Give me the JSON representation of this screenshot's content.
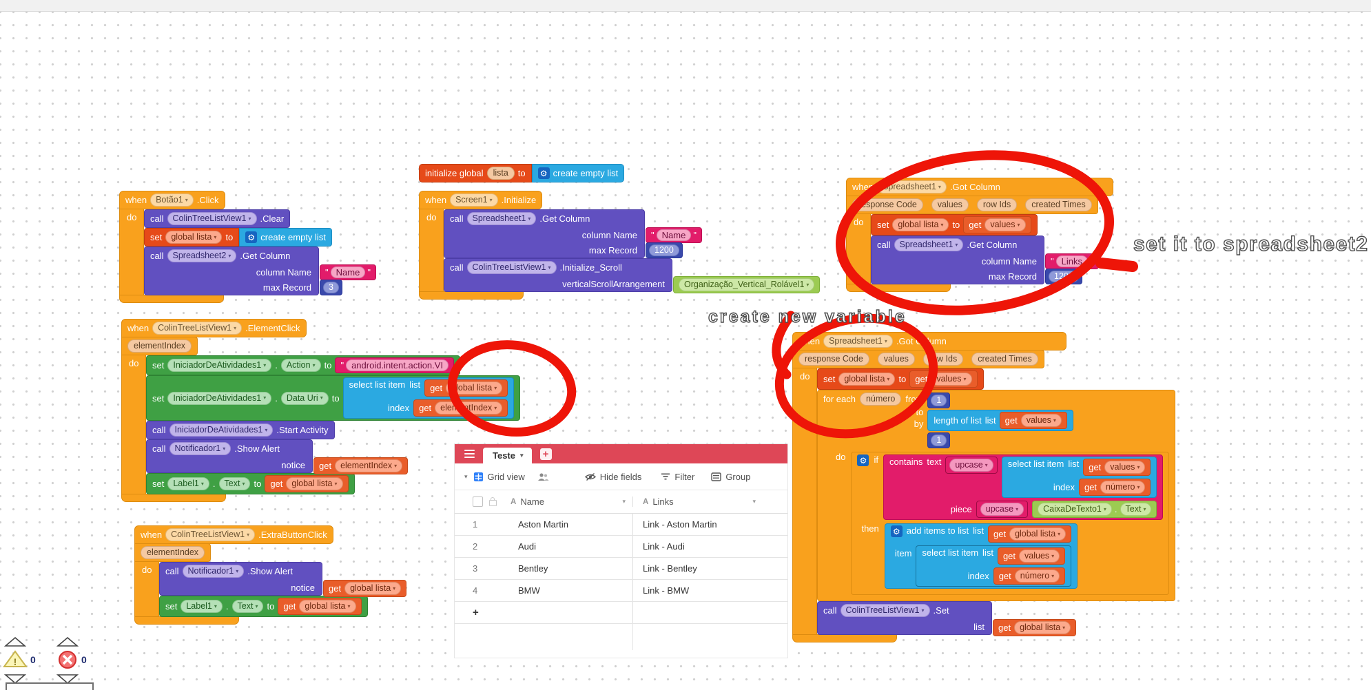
{
  "common": {
    "when": "when",
    "do": "do",
    "call": "call",
    "set": "set",
    "to": "to",
    "get": "get",
    "then": "then",
    "if": "if",
    "list": "list",
    "index": "index",
    "item": "item",
    "dot": "."
  },
  "annotations": {
    "set_it": "set it to spreadsheet2",
    "create_var": "create new variable"
  },
  "status": {
    "warnings": "0",
    "errors": "0"
  },
  "blocks": {
    "init_global": {
      "label": "initialize global",
      "name": "lista",
      "value": "create empty list"
    },
    "botao": {
      "component": "Botão1",
      "event": ".Click",
      "clear": {
        "component": "ColinTreeListView1",
        "method": ".Clear"
      },
      "set_lista": {
        "var": "global lista",
        "value": "create empty list"
      },
      "get_col": {
        "component": "Spreadsheet2",
        "method": ".Get Column",
        "arg1": "column Name",
        "val1": "Name",
        "arg2": "max Record",
        "val2": "3"
      }
    },
    "screen": {
      "component": "Screen1",
      "event": ".Initialize",
      "get_col": {
        "component": "Spreadsheet1",
        "method": ".Get Column",
        "arg1": "column Name",
        "val1": "Name",
        "arg2": "max Record",
        "val2": "1200"
      },
      "init_scroll": {
        "component": "ColinTreeListView1",
        "method": ".Initialize_Scroll",
        "arg1": "verticalScrollArrangement",
        "val1": "Organização_Vertical_Rolável1"
      }
    },
    "gotcol1": {
      "component": "Spreadsheet1",
      "event": ".Got Column",
      "p1": "response Code",
      "p2": "values",
      "p3": "row Ids",
      "p4": "created Times",
      "set_lista": {
        "var": "global lista",
        "get": "values"
      },
      "get_col": {
        "component": "Spreadsheet1",
        "method": ".Get Column",
        "arg1": "column Name",
        "val1": "Links",
        "arg2": "max Record",
        "val2": "1200"
      }
    },
    "elemclick": {
      "component": "ColinTreeListView1",
      "event": ".ElementClick",
      "param": "elementIndex",
      "set_action": {
        "component": "IniciadorDeAtividades1",
        "prop": "Action",
        "text": "android.intent.action.VI"
      },
      "set_datauri": {
        "component": "IniciadorDeAtividades1",
        "prop": "Data Uri",
        "select": "select list item",
        "list_get": "global lista",
        "index_get": "elementIndex"
      },
      "start": {
        "component": "IniciadorDeAtividades1",
        "method": ".Start Activity"
      },
      "alert": {
        "component": "Notificador1",
        "method": ".Show Alert",
        "arg": "notice",
        "get": "elementIndex"
      },
      "set_label": {
        "component": "Label1",
        "prop": "Text",
        "get": "global lista"
      }
    },
    "gotcol2": {
      "component": "Spreadsheet1",
      "event": ".Got Column",
      "p1": "response Code",
      "p2": "values",
      "p3": "row Ids",
      "p4": "created Times",
      "set_lista": {
        "var": "global lista",
        "get": "values"
      },
      "foreach": {
        "label": "for each",
        "varname": "número",
        "from": "from",
        "from_val": "1",
        "by": "by",
        "by_val": "1",
        "length": {
          "label": "length of list",
          "get": "values"
        },
        "iff": {
          "contains": "contains",
          "text": "text",
          "upcase1": "upcase",
          "sel_label": "select list item",
          "sel_list_get": "values",
          "sel_index_get": "número",
          "piece": "piece",
          "upcase2": "upcase",
          "comp": "CaixaDeTexto1",
          "prop": "Text"
        },
        "add": {
          "label": "add items to list",
          "list_get": "global lista",
          "sel_label": "select list item",
          "sel_list_get": "values",
          "sel_index_get": "número"
        }
      },
      "set_view": {
        "component": "ColinTreeListView1",
        "method": ".Set",
        "arg": "list",
        "get": "global lista"
      }
    },
    "extrabtn": {
      "component": "ColinTreeListView1",
      "event": ".ExtraButtonClick",
      "param": "elementIndex",
      "alert": {
        "component": "Notificador1",
        "method": ".Show Alert",
        "arg": "notice",
        "get": "global lista"
      },
      "set_label": {
        "component": "Label1",
        "prop": "Text",
        "get": "global lista"
      }
    }
  },
  "airtable": {
    "tab": "Teste",
    "add_tab": "+",
    "toolbar": {
      "grid_view": "Grid view",
      "hide_fields": "Hide fields",
      "filter": "Filter",
      "group": "Group"
    },
    "columns": [
      "Name",
      "Links"
    ],
    "rows": [
      {
        "n": "1",
        "name": "Aston Martin",
        "link": "Link - Aston Martin"
      },
      {
        "n": "2",
        "name": "Audi",
        "link": "Link - Audi"
      },
      {
        "n": "3",
        "name": "Bentley",
        "link": "Link - Bentley"
      },
      {
        "n": "4",
        "name": "BMW",
        "link": "Link - BMW"
      }
    ],
    "add_row": "+"
  }
}
